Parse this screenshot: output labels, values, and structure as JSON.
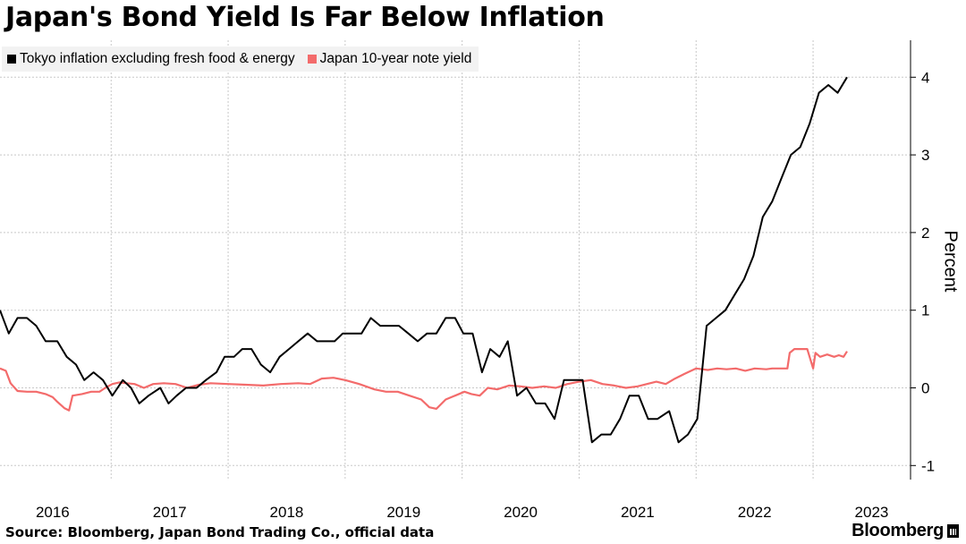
{
  "chart_data": {
    "type": "line",
    "title": "Japan's Bond Yield Is Far Below Inflation",
    "ylabel": "Percent",
    "ylim": [
      -1.1,
      4.5
    ],
    "yticks": [
      -1,
      0,
      1,
      2,
      3,
      4
    ],
    "xlim": [
      2015.55,
      2023.3
    ],
    "xticks": [
      {
        "value": 2016,
        "label": "2016"
      },
      {
        "value": 2017,
        "label": "2017"
      },
      {
        "value": 2018,
        "label": "2018"
      },
      {
        "value": 2019,
        "label": "2019"
      },
      {
        "value": 2020,
        "label": "2020"
      },
      {
        "value": 2021,
        "label": "2021"
      },
      {
        "value": 2022,
        "label": "2022"
      },
      {
        "value": 2023,
        "label": "2023"
      }
    ],
    "grid": true,
    "legend_placement": "top-left",
    "series": [
      {
        "name": "Tokyo inflation excluding fresh food & energy",
        "color": "#000000",
        "points": [
          [
            2015.55,
            1.0
          ],
          [
            2015.625,
            0.7
          ],
          [
            2015.7,
            0.9
          ],
          [
            2015.78,
            0.9
          ],
          [
            2015.86,
            0.8
          ],
          [
            2015.94,
            0.6
          ],
          [
            2016.04,
            0.6
          ],
          [
            2016.12,
            0.4
          ],
          [
            2016.2,
            0.3
          ],
          [
            2016.27,
            0.1
          ],
          [
            2016.35,
            0.2
          ],
          [
            2016.43,
            0.1
          ],
          [
            2016.51,
            -0.1
          ],
          [
            2016.6,
            0.1
          ],
          [
            2016.67,
            0.0
          ],
          [
            2016.74,
            -0.2
          ],
          [
            2016.82,
            -0.1
          ],
          [
            2016.92,
            0.0
          ],
          [
            2016.99,
            -0.2
          ],
          [
            2017.06,
            -0.1
          ],
          [
            2017.14,
            0.0
          ],
          [
            2017.23,
            0.0
          ],
          [
            2017.31,
            0.1
          ],
          [
            2017.4,
            0.2
          ],
          [
            2017.47,
            0.4
          ],
          [
            2017.55,
            0.4
          ],
          [
            2017.62,
            0.5
          ],
          [
            2017.7,
            0.5
          ],
          [
            2017.78,
            0.3
          ],
          [
            2017.86,
            0.2
          ],
          [
            2017.94,
            0.4
          ],
          [
            2018.02,
            0.5
          ],
          [
            2018.1,
            0.6
          ],
          [
            2018.18,
            0.7
          ],
          [
            2018.26,
            0.6
          ],
          [
            2018.33,
            0.6
          ],
          [
            2018.41,
            0.6
          ],
          [
            2018.48,
            0.7
          ],
          [
            2018.56,
            0.7
          ],
          [
            2018.64,
            0.7
          ],
          [
            2018.72,
            0.9
          ],
          [
            2018.8,
            0.8
          ],
          [
            2018.88,
            0.8
          ],
          [
            2018.96,
            0.8
          ],
          [
            2019.04,
            0.7
          ],
          [
            2019.12,
            0.6
          ],
          [
            2019.2,
            0.7
          ],
          [
            2019.28,
            0.7
          ],
          [
            2019.36,
            0.9
          ],
          [
            2019.44,
            0.9
          ],
          [
            2019.51,
            0.7
          ],
          [
            2019.59,
            0.7
          ],
          [
            2019.67,
            0.2
          ],
          [
            2019.74,
            0.5
          ],
          [
            2019.82,
            0.4
          ],
          [
            2019.89,
            0.6
          ],
          [
            2019.97,
            -0.1
          ],
          [
            2020.05,
            0.0
          ],
          [
            2020.13,
            -0.2
          ],
          [
            2020.21,
            -0.2
          ],
          [
            2020.29,
            -0.4
          ],
          [
            2020.37,
            0.1
          ],
          [
            2020.45,
            0.1
          ],
          [
            2020.53,
            0.1
          ],
          [
            2020.61,
            -0.7
          ],
          [
            2020.69,
            -0.6
          ],
          [
            2020.77,
            -0.6
          ],
          [
            2020.85,
            -0.4
          ],
          [
            2020.93,
            -0.1
          ],
          [
            2021.01,
            -0.1
          ],
          [
            2021.09,
            -0.4
          ],
          [
            2021.17,
            -0.4
          ],
          [
            2021.27,
            -0.3
          ],
          [
            2021.35,
            -0.7
          ],
          [
            2021.43,
            -0.6
          ],
          [
            2021.51,
            -0.4
          ],
          [
            2021.59,
            0.8
          ],
          [
            2021.67,
            0.9
          ],
          [
            2021.75,
            1.0
          ],
          [
            2021.83,
            1.2
          ],
          [
            2021.91,
            1.4
          ],
          [
            2021.99,
            1.7
          ],
          [
            2022.07,
            2.2
          ],
          [
            2022.15,
            2.4
          ],
          [
            2022.23,
            2.7
          ],
          [
            2022.31,
            3.0
          ],
          [
            2022.39,
            3.1
          ],
          [
            2022.47,
            3.4
          ],
          [
            2022.55,
            3.8
          ],
          [
            2022.63,
            3.9
          ],
          [
            2022.71,
            3.8
          ],
          [
            2022.79,
            4.0
          ]
        ]
      },
      {
        "name": "Japan 10-year note yield",
        "color": "#f36b6b",
        "points": [
          [
            2015.55,
            0.25
          ],
          [
            2015.6,
            0.22
          ],
          [
            2015.64,
            0.06
          ],
          [
            2015.7,
            -0.04
          ],
          [
            2015.78,
            -0.05
          ],
          [
            2015.86,
            -0.05
          ],
          [
            2015.94,
            -0.08
          ],
          [
            2016.0,
            -0.12
          ],
          [
            2016.04,
            -0.18
          ],
          [
            2016.1,
            -0.26
          ],
          [
            2016.14,
            -0.29
          ],
          [
            2016.17,
            -0.1
          ],
          [
            2016.25,
            -0.08
          ],
          [
            2016.33,
            -0.05
          ],
          [
            2016.4,
            -0.05
          ],
          [
            2016.45,
            0.0
          ],
          [
            2016.51,
            0.05
          ],
          [
            2016.57,
            0.07
          ],
          [
            2016.63,
            0.06
          ],
          [
            2016.7,
            0.05
          ],
          [
            2016.78,
            0.0
          ],
          [
            2016.86,
            0.05
          ],
          [
            2016.95,
            0.06
          ],
          [
            2017.05,
            0.05
          ],
          [
            2017.15,
            0.0
          ],
          [
            2017.25,
            0.04
          ],
          [
            2017.35,
            0.06
          ],
          [
            2017.5,
            0.05
          ],
          [
            2017.65,
            0.04
          ],
          [
            2017.8,
            0.03
          ],
          [
            2017.95,
            0.05
          ],
          [
            2018.1,
            0.06
          ],
          [
            2018.2,
            0.05
          ],
          [
            2018.3,
            0.12
          ],
          [
            2018.4,
            0.13
          ],
          [
            2018.5,
            0.1
          ],
          [
            2018.62,
            0.05
          ],
          [
            2018.75,
            -0.02
          ],
          [
            2018.85,
            -0.05
          ],
          [
            2018.95,
            -0.05
          ],
          [
            2019.05,
            -0.1
          ],
          [
            2019.15,
            -0.15
          ],
          [
            2019.22,
            -0.25
          ],
          [
            2019.28,
            -0.27
          ],
          [
            2019.36,
            -0.15
          ],
          [
            2019.44,
            -0.1
          ],
          [
            2019.52,
            -0.05
          ],
          [
            2019.58,
            -0.08
          ],
          [
            2019.65,
            -0.1
          ],
          [
            2019.72,
            0.0
          ],
          [
            2019.8,
            -0.02
          ],
          [
            2019.9,
            0.03
          ],
          [
            2020.0,
            0.02
          ],
          [
            2020.1,
            0.0
          ],
          [
            2020.2,
            0.02
          ],
          [
            2020.3,
            0.0
          ],
          [
            2020.4,
            0.05
          ],
          [
            2020.5,
            0.08
          ],
          [
            2020.6,
            0.1
          ],
          [
            2020.7,
            0.05
          ],
          [
            2020.8,
            0.03
          ],
          [
            2020.9,
            0.0
          ],
          [
            2021.0,
            0.02
          ],
          [
            2021.08,
            0.05
          ],
          [
            2021.16,
            0.08
          ],
          [
            2021.24,
            0.05
          ],
          [
            2021.32,
            0.12
          ],
          [
            2021.4,
            0.18
          ],
          [
            2021.5,
            0.25
          ],
          [
            2021.6,
            0.23
          ],
          [
            2021.68,
            0.25
          ],
          [
            2021.76,
            0.24
          ],
          [
            2021.84,
            0.25
          ],
          [
            2021.92,
            0.22
          ],
          [
            2022.0,
            0.25
          ],
          [
            2022.1,
            0.24
          ],
          [
            2022.15,
            0.25
          ],
          [
            2022.22,
            0.25
          ],
          [
            2022.28,
            0.25
          ],
          [
            2022.3,
            0.45
          ],
          [
            2022.34,
            0.5
          ],
          [
            2022.4,
            0.5
          ],
          [
            2022.45,
            0.5
          ],
          [
            2022.5,
            0.25
          ],
          [
            2022.52,
            0.45
          ],
          [
            2022.56,
            0.4
          ],
          [
            2022.62,
            0.43
          ],
          [
            2022.68,
            0.4
          ],
          [
            2022.72,
            0.42
          ],
          [
            2022.76,
            0.4
          ],
          [
            2022.79,
            0.47
          ]
        ]
      }
    ],
    "source": "Source: Bloomberg, Japan Bond Trading Co., official data",
    "brand": "Bloomberg"
  }
}
